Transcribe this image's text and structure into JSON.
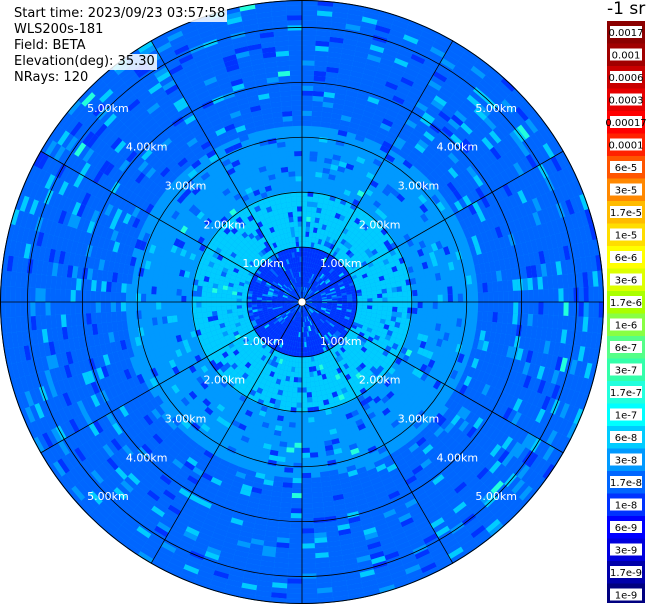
{
  "info": {
    "start_time": "Start time: 2023/09/23 03:57:58",
    "instrument": "WLS200s-181",
    "field": "Field: BETA",
    "elevation": "Elevation(deg): 35.30",
    "nrays": "NRays: 120"
  },
  "units_label": "-1 sr",
  "colors": {
    "background": "#ffffff",
    "grid": "#000000",
    "range_label": "#ffffff"
  },
  "chart_data": {
    "type": "heatmap",
    "projection": "polar (PPI scan)",
    "range_unit": "km",
    "max_range_km": 5.5,
    "range_rings_km": [
      1,
      2,
      3,
      4,
      5
    ],
    "ring_labels": [
      "1.00km",
      "2.00km",
      "3.00km",
      "4.00km",
      "5.00km"
    ],
    "azimuth_spokes_deg": [
      0,
      30,
      60,
      90,
      120,
      150,
      180,
      210,
      240,
      270,
      300,
      330
    ],
    "dominant_value_by_range": [
      {
        "range_km": [
          0,
          1.0
        ],
        "value": "1e-8"
      },
      {
        "range_km": [
          1.0,
          2.0
        ],
        "value": "6e-8"
      },
      {
        "range_km": [
          2.0,
          3.2
        ],
        "value": "3e-8"
      },
      {
        "range_km": [
          3.2,
          5.5
        ],
        "value": "1.7e-8"
      }
    ],
    "colorbar": {
      "scale": "log",
      "labels": [
        "0.0017",
        "0.001",
        "0.0006",
        "0.0003",
        "0.00017",
        "0.0001",
        "6e-5",
        "3e-5",
        "1.7e-5",
        "1e-5",
        "6e-6",
        "3e-6",
        "1.7e-6",
        "1e-6",
        "6e-7",
        "3e-7",
        "1.7e-7",
        "1e-7",
        "6e-8",
        "3e-8",
        "1.7e-8",
        "1e-8",
        "6e-9",
        "3e-9",
        "1.7e-9",
        "1e-9"
      ],
      "colors": [
        "#8b0000",
        "#a00000",
        "#c80000",
        "#e60000",
        "#ff0000",
        "#ff2200",
        "#ff5500",
        "#ff8800",
        "#ffbb00",
        "#ffdd00",
        "#ffff00",
        "#ddff00",
        "#aaff00",
        "#88ff44",
        "#55ff88",
        "#33ffaa",
        "#22ffdd",
        "#00ffff",
        "#00ccff",
        "#0099ff",
        "#0066ff",
        "#0033ff",
        "#0000ff",
        "#0000dd",
        "#0000aa",
        "#000080"
      ]
    }
  }
}
